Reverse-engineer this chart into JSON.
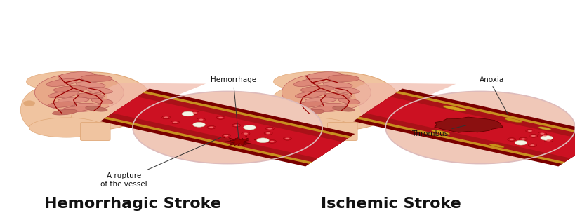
{
  "background_color": "#ffffff",
  "fig_width": 8.2,
  "fig_height": 3.14,
  "dpi": 100,
  "left_title": "Hemorrhagic Stroke",
  "right_title": "Ischemic Stroke",
  "title_fontsize": 16,
  "title_fontweight": "bold",
  "title_color": "#111111",
  "left_label_top": "Hemorrhage",
  "left_label_bottom": "A rupture\nof the vessel",
  "right_label_top": "Anoxia",
  "right_label_bottom": "Thrombus",
  "label_fontsize": 7.5,
  "label_color": "#111111",
  "skin_color": "#f0c4a0",
  "skin_dark": "#c88858",
  "skin_mid": "#e0a878",
  "brain_pink": "#e09090",
  "brain_dark_red": "#aa2222",
  "brain_med": "#cc5555",
  "vessel_bright_red": "#cc1122",
  "vessel_dark": "#8b0000",
  "vessel_wall_dark": "#6b0000",
  "yellow_gold": "#c8900a",
  "zoom_pink_bg": "#f0c8b8",
  "connector_color": "#f0b8a8",
  "lhcx": 0.155,
  "lhcy": 0.52,
  "rhcx": 0.585,
  "rhcy": 0.52,
  "lzcx": 0.395,
  "lzcy": 0.42,
  "rzcx": 0.835,
  "rzcy": 0.42,
  "zoom_r": 0.165
}
